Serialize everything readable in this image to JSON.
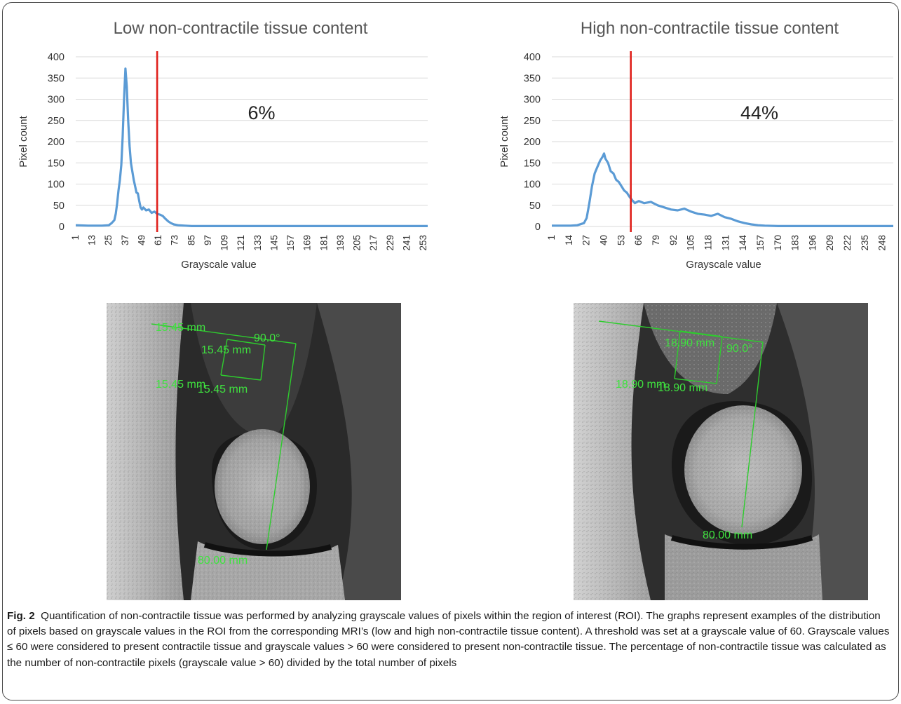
{
  "chart_data": [
    {
      "type": "line",
      "title": "Low non-contractile tissue content",
      "xlabel": "Grayscale value",
      "ylabel": "Pixel count",
      "ylim": [
        0,
        400
      ],
      "yticks": [
        0,
        50,
        100,
        150,
        200,
        250,
        300,
        350,
        400
      ],
      "xlim": [
        1,
        256
      ],
      "xticks": [
        1,
        13,
        25,
        37,
        49,
        61,
        73,
        85,
        97,
        109,
        121,
        133,
        145,
        157,
        169,
        181,
        193,
        205,
        217,
        229,
        241,
        253
      ],
      "grid": true,
      "threshold": 60,
      "annotation": "6%",
      "colors": {
        "line": "#5b9bd5",
        "threshold": "#e0201b",
        "grid": "#d9d9d9"
      },
      "series": [
        {
          "x": [
            1,
            10,
            20,
            25,
            27,
            29,
            30,
            31,
            32,
            33,
            34,
            35,
            36,
            37,
            38,
            39,
            40,
            41,
            42,
            43,
            44,
            45,
            46,
            47,
            48,
            49,
            50,
            52,
            54,
            56,
            58,
            60,
            62,
            64,
            66,
            68,
            70,
            72,
            75,
            80,
            85,
            100,
            150,
            200,
            256
          ],
          "y": [
            3,
            2,
            2,
            3,
            8,
            15,
            30,
            55,
            85,
            110,
            145,
            210,
            300,
            372,
            330,
            250,
            190,
            150,
            130,
            110,
            95,
            80,
            78,
            60,
            45,
            40,
            45,
            38,
            40,
            32,
            35,
            30,
            28,
            25,
            18,
            12,
            8,
            5,
            3,
            2,
            1,
            1,
            1,
            1,
            1
          ]
        }
      ]
    },
    {
      "type": "line",
      "title": "High non-contractile tissue content",
      "xlabel": "Grayscale value",
      "ylabel": "Pixel count",
      "ylim": [
        0,
        400
      ],
      "yticks": [
        0,
        50,
        100,
        150,
        200,
        250,
        300,
        350,
        400
      ],
      "xlim": [
        1,
        256
      ],
      "xticks": [
        1,
        14,
        27,
        40,
        53,
        66,
        79,
        92,
        105,
        118,
        131,
        144,
        157,
        170,
        183,
        196,
        209,
        222,
        235,
        248
      ],
      "grid": true,
      "threshold": 60,
      "annotation": "44%",
      "colors": {
        "line": "#5b9bd5",
        "threshold": "#e0201b",
        "grid": "#d9d9d9"
      },
      "series": [
        {
          "x": [
            1,
            15,
            20,
            25,
            27,
            29,
            31,
            33,
            35,
            37,
            39,
            40,
            41,
            43,
            45,
            47,
            49,
            51,
            53,
            55,
            57,
            59,
            61,
            63,
            66,
            70,
            75,
            80,
            85,
            90,
            95,
            100,
            105,
            110,
            115,
            120,
            125,
            130,
            135,
            140,
            145,
            150,
            155,
            160,
            170,
            200,
            256
          ],
          "y": [
            2,
            2,
            3,
            8,
            20,
            55,
            95,
            125,
            140,
            155,
            165,
            172,
            160,
            150,
            130,
            125,
            110,
            105,
            95,
            85,
            80,
            70,
            62,
            55,
            60,
            55,
            58,
            50,
            45,
            40,
            38,
            42,
            35,
            30,
            28,
            25,
            30,
            22,
            18,
            12,
            8,
            5,
            3,
            2,
            1,
            1,
            1
          ]
        }
      ]
    }
  ],
  "mri_left": {
    "labels": [
      "15.45 mm",
      "90.0°",
      "15.45 mm",
      "15.45 mm",
      "15.45 mm",
      "80.00 mm"
    ]
  },
  "mri_right": {
    "labels": [
      "18.90 mm",
      "90.0°",
      "18.90 mm",
      "18.90 mm",
      "80.00 mm"
    ]
  },
  "caption": {
    "lead": "Fig. 2",
    "text": "Quantification of non-contractile tissue was performed by analyzing grayscale values of pixels within the region of interest (ROI). The graphs represent examples of the distribution of pixels based on grayscale values in the ROI from the corresponding MRI’s (low and high non-contractile tissue content). A threshold was set at a grayscale value of 60. Grayscale values ≤ 60 were considered to present contractile tissue and grayscale values > 60 were considered to present non-contractile tissue. The percentage of non-contractile tissue was calculated as the number of non-contractile pixels (grayscale value > 60) divided by the total number of pixels"
  }
}
